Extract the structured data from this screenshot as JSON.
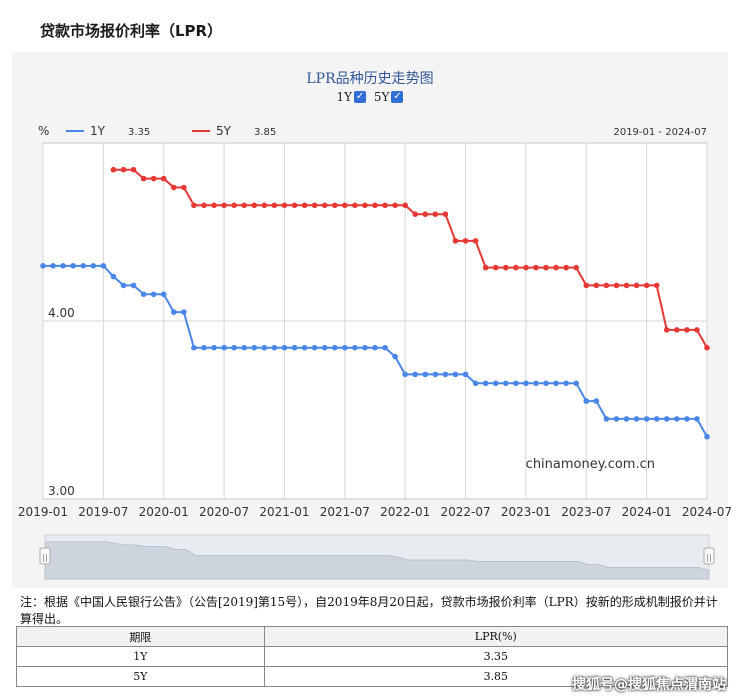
{
  "page_title": "贷款市场报价利率（LPR）",
  "chart_title": "LPR品种历史走势图",
  "toggles": [
    {
      "label": "1Y",
      "checked": true
    },
    {
      "label": "5Y",
      "checked": true
    }
  ],
  "legend": [
    {
      "name": "1Y",
      "value": "3.35",
      "color": "#4a86e8"
    },
    {
      "name": "5Y",
      "value": "3.85",
      "color": "#e53935"
    }
  ],
  "unit_label": "%",
  "date_range": "2019-01 - 2024-07",
  "source_label": "chinamoney.com.cn",
  "note": "注：根据《中国人民银行公告》（公告[2019]第15号），自2019年8月20日起，贷款市场报价利率（LPR）按新的形成机制报价并计算得出。",
  "table": {
    "headers": [
      "期限",
      "LPR(%)"
    ],
    "rows": [
      [
        "1Y",
        "3.35"
      ],
      [
        "5Y",
        "3.85"
      ]
    ]
  },
  "watermark": "搜狐号@搜狐焦点渭南站",
  "chart_data": {
    "type": "line",
    "x_ticks": [
      "2019-01",
      "2019-07",
      "2020-01",
      "2020-07",
      "2021-01",
      "2021-07",
      "2022-01",
      "2022-07",
      "2023-01",
      "2023-07",
      "2024-01",
      "2024-07"
    ],
    "y_ticks": [
      "3.00",
      "4.00"
    ],
    "ylim": [
      3.0,
      5.0
    ],
    "xlim": [
      "2019-01",
      "2024-07"
    ],
    "grid": true,
    "series": [
      {
        "name": "1Y",
        "color": "#4a86e8",
        "x": [
          "2019-01",
          "2019-02",
          "2019-03",
          "2019-04",
          "2019-05",
          "2019-06",
          "2019-07",
          "2019-08",
          "2019-09",
          "2019-10",
          "2019-11",
          "2019-12",
          "2020-01",
          "2020-02",
          "2020-03",
          "2020-04",
          "2020-05",
          "2020-06",
          "2020-07",
          "2020-08",
          "2020-09",
          "2020-10",
          "2020-11",
          "2020-12",
          "2021-01",
          "2021-02",
          "2021-03",
          "2021-04",
          "2021-05",
          "2021-06",
          "2021-07",
          "2021-08",
          "2021-09",
          "2021-10",
          "2021-11",
          "2021-12",
          "2022-01",
          "2022-02",
          "2022-03",
          "2022-04",
          "2022-05",
          "2022-06",
          "2022-07",
          "2022-08",
          "2022-09",
          "2022-10",
          "2022-11",
          "2022-12",
          "2023-01",
          "2023-02",
          "2023-03",
          "2023-04",
          "2023-05",
          "2023-06",
          "2023-07",
          "2023-08",
          "2023-09",
          "2023-10",
          "2023-11",
          "2023-12",
          "2024-01",
          "2024-02",
          "2024-03",
          "2024-04",
          "2024-05",
          "2024-06",
          "2024-07"
        ],
        "values": [
          4.31,
          4.31,
          4.31,
          4.31,
          4.31,
          4.31,
          4.31,
          4.25,
          4.2,
          4.2,
          4.15,
          4.15,
          4.15,
          4.05,
          4.05,
          3.85,
          3.85,
          3.85,
          3.85,
          3.85,
          3.85,
          3.85,
          3.85,
          3.85,
          3.85,
          3.85,
          3.85,
          3.85,
          3.85,
          3.85,
          3.85,
          3.85,
          3.85,
          3.85,
          3.85,
          3.8,
          3.7,
          3.7,
          3.7,
          3.7,
          3.7,
          3.7,
          3.7,
          3.65,
          3.65,
          3.65,
          3.65,
          3.65,
          3.65,
          3.65,
          3.65,
          3.65,
          3.65,
          3.65,
          3.55,
          3.55,
          3.45,
          3.45,
          3.45,
          3.45,
          3.45,
          3.45,
          3.45,
          3.45,
          3.45,
          3.45,
          3.35
        ]
      },
      {
        "name": "5Y",
        "color": "#e53935",
        "x": [
          "2019-08",
          "2019-09",
          "2019-10",
          "2019-11",
          "2019-12",
          "2020-01",
          "2020-02",
          "2020-03",
          "2020-04",
          "2020-05",
          "2020-06",
          "2020-07",
          "2020-08",
          "2020-09",
          "2020-10",
          "2020-11",
          "2020-12",
          "2021-01",
          "2021-02",
          "2021-03",
          "2021-04",
          "2021-05",
          "2021-06",
          "2021-07",
          "2021-08",
          "2021-09",
          "2021-10",
          "2021-11",
          "2021-12",
          "2022-01",
          "2022-02",
          "2022-03",
          "2022-04",
          "2022-05",
          "2022-06",
          "2022-07",
          "2022-08",
          "2022-09",
          "2022-10",
          "2022-11",
          "2022-12",
          "2023-01",
          "2023-02",
          "2023-03",
          "2023-04",
          "2023-05",
          "2023-06",
          "2023-07",
          "2023-08",
          "2023-09",
          "2023-10",
          "2023-11",
          "2023-12",
          "2024-01",
          "2024-02",
          "2024-03",
          "2024-04",
          "2024-05",
          "2024-06",
          "2024-07"
        ],
        "values": [
          4.85,
          4.85,
          4.85,
          4.8,
          4.8,
          4.8,
          4.75,
          4.75,
          4.65,
          4.65,
          4.65,
          4.65,
          4.65,
          4.65,
          4.65,
          4.65,
          4.65,
          4.65,
          4.65,
          4.65,
          4.65,
          4.65,
          4.65,
          4.65,
          4.65,
          4.65,
          4.65,
          4.65,
          4.65,
          4.65,
          4.6,
          4.6,
          4.6,
          4.6,
          4.45,
          4.45,
          4.45,
          4.3,
          4.3,
          4.3,
          4.3,
          4.3,
          4.3,
          4.3,
          4.3,
          4.3,
          4.3,
          4.2,
          4.2,
          4.2,
          4.2,
          4.2,
          4.2,
          4.2,
          4.2,
          3.95,
          3.95,
          3.95,
          3.95,
          3.85
        ]
      }
    ]
  }
}
